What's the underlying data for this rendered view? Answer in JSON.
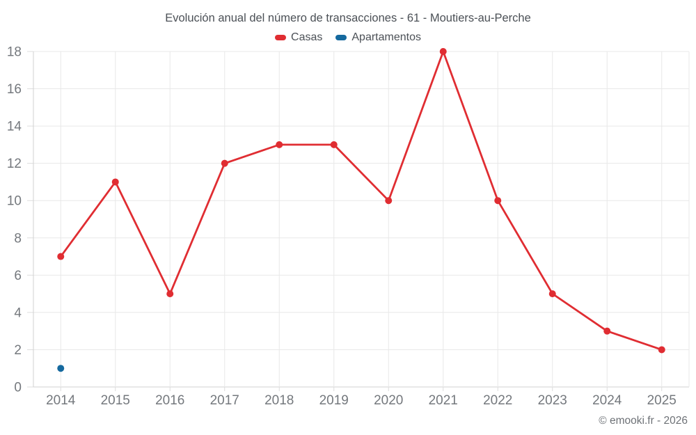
{
  "footer": {
    "copyright": "© emooki.fr - 2026"
  },
  "chart_data": {
    "type": "line",
    "title": "Evolución anual del número de transacciones - 61 - Moutiers-au-Perche",
    "categories": [
      "2014",
      "2015",
      "2016",
      "2017",
      "2018",
      "2019",
      "2020",
      "2021",
      "2022",
      "2023",
      "2024",
      "2025"
    ],
    "series": [
      {
        "name": "Casas",
        "color": "#e02d32",
        "values": [
          7,
          11,
          5,
          12,
          13,
          13,
          10,
          18,
          10,
          5,
          3,
          2
        ]
      },
      {
        "name": "Apartamentos",
        "color": "#15699e",
        "values": [
          1,
          null,
          null,
          null,
          null,
          null,
          null,
          null,
          null,
          null,
          null,
          null
        ]
      }
    ],
    "xlabel": "",
    "ylabel": "",
    "ylim": [
      0,
      18
    ],
    "ytick_step": 2,
    "grid": true,
    "legend_position": "top",
    "marker": "circle"
  }
}
